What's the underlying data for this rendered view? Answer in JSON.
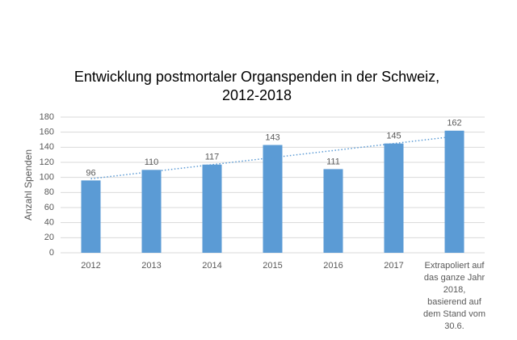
{
  "chart_data": {
    "type": "bar",
    "title": [
      "Entwicklung postmortaler Organspenden in der Schweiz,",
      "2012-2018"
    ],
    "y_label": "Anzahl Spenden",
    "categories": [
      "2012",
      "2013",
      "2014",
      "2015",
      "2016",
      "2017",
      "Extrapoliert auf das ganze Jahr 2018, basierend auf dem Stand vom 30.6."
    ],
    "values": [
      96,
      110,
      117,
      143,
      111,
      145,
      162
    ],
    "color": "#5b9bd5",
    "ylim": [
      0,
      180
    ],
    "yticks": [
      0,
      20,
      40,
      60,
      80,
      100,
      120,
      140,
      160,
      180
    ],
    "grid": true,
    "trendline": "linear",
    "trendline_color": "#5b9bd5"
  }
}
